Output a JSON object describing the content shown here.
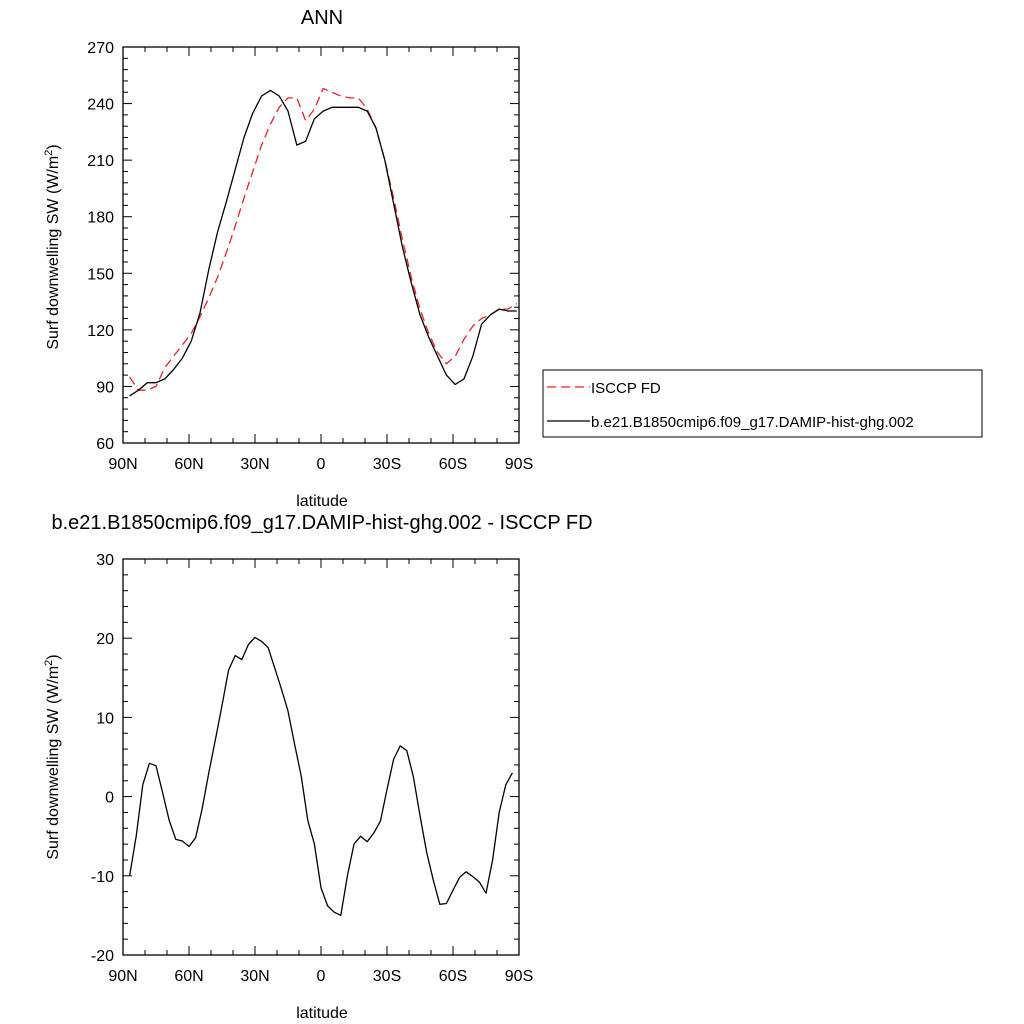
{
  "chart_data": [
    {
      "type": "line",
      "title": "ANN",
      "xlabel": "latitude",
      "ylabel": "Surf downwelling SW (W/m²)",
      "ylabel_main": "Surf downwelling SW (W/m",
      "ylabel_sup": "2",
      "ylabel_close": ")",
      "xlim": [
        90,
        -90
      ],
      "ylim": [
        60,
        270
      ],
      "xticks": [
        90,
        60,
        30,
        0,
        -30,
        -60,
        -90
      ],
      "xtick_labels": [
        "90N",
        "60N",
        "30N",
        "0",
        "30S",
        "60S",
        "90S"
      ],
      "yticks": [
        60,
        90,
        120,
        150,
        180,
        210,
        240,
        270
      ],
      "ytick_labels": [
        "60",
        "90",
        "120",
        "150",
        "180",
        "210",
        "240",
        "270"
      ],
      "legend": "right",
      "series": [
        {
          "name": "ISCCP FD",
          "color": "#e8212b",
          "dash": true,
          "x": [
            87,
            83,
            79,
            75,
            71,
            67,
            63,
            59,
            55,
            51,
            47,
            43,
            39,
            35,
            31,
            27,
            23,
            19,
            15,
            11,
            7,
            3,
            -1,
            -5,
            -9,
            -13,
            -17,
            -21,
            -25,
            -29,
            -33,
            -37,
            -41,
            -45,
            -49,
            -53,
            -57,
            -61,
            -65,
            -69,
            -73,
            -77,
            -81,
            -85,
            -89
          ],
          "y": [
            95,
            88,
            88,
            90,
            100,
            106,
            112,
            118,
            127,
            137,
            148,
            161,
            175,
            190,
            204,
            218,
            229,
            238,
            243,
            243,
            231,
            237,
            248,
            246,
            244,
            243,
            243,
            237,
            227,
            210,
            190,
            168,
            148,
            131,
            118,
            108,
            102,
            106,
            115,
            122,
            126,
            128,
            131,
            131,
            134
          ]
        },
        {
          "name": "b.e21.B1850cmip6.f09_g17.DAMIP-hist-ghg.002",
          "color": "#000000",
          "dash": false,
          "x": [
            87,
            83,
            79,
            75,
            71,
            67,
            63,
            59,
            55,
            51,
            47,
            43,
            39,
            35,
            31,
            27,
            23,
            19,
            15,
            11,
            7,
            3,
            -1,
            -5,
            -9,
            -13,
            -17,
            -21,
            -25,
            -29,
            -33,
            -37,
            -41,
            -45,
            -49,
            -53,
            -57,
            -61,
            -65,
            -69,
            -73,
            -77,
            -81,
            -85,
            -89
          ],
          "y": [
            85,
            88,
            92,
            92,
            94,
            99,
            105,
            114,
            129,
            152,
            172,
            188,
            205,
            222,
            235,
            244,
            247,
            244,
            236,
            218,
            220,
            232,
            236,
            238,
            238,
            238,
            238,
            236,
            227,
            210,
            187,
            164,
            145,
            128,
            116,
            106,
            96,
            91,
            94,
            106,
            123,
            128,
            131,
            130,
            130
          ]
        }
      ]
    },
    {
      "type": "line",
      "title": "b.e21.B1850cmip6.f09_g17.DAMIP-hist-ghg.002 - ISCCP FD",
      "xlabel": "latitude",
      "ylabel": "Surf downwelling SW (W/m²)",
      "ylabel_main": "Surf downwelling SW (W/m",
      "ylabel_sup": "2",
      "ylabel_close": ")",
      "xlim": [
        90,
        -90
      ],
      "ylim": [
        -20,
        30
      ],
      "xticks": [
        90,
        60,
        30,
        0,
        -30,
        -60,
        -90
      ],
      "xtick_labels": [
        "90N",
        "60N",
        "30N",
        "0",
        "30S",
        "60S",
        "90S"
      ],
      "yticks": [
        -20,
        -10,
        0,
        10,
        20,
        30
      ],
      "ytick_labels": [
        "-20",
        "-10",
        "0",
        "10",
        "20",
        "30"
      ],
      "series": [
        {
          "name": "",
          "color": "#000000",
          "dash": false,
          "x": [
            87,
            84,
            81,
            78,
            75,
            72,
            69,
            66,
            63,
            60,
            57,
            54,
            51,
            48,
            45,
            42,
            39,
            36,
            33,
            30,
            27,
            24,
            21,
            18,
            15,
            12,
            9,
            6,
            3,
            0,
            -3,
            -6,
            -9,
            -12,
            -15,
            -18,
            -21,
            -24,
            -27,
            -30,
            -33,
            -36,
            -39,
            -42,
            -45,
            -48,
            -51,
            -54,
            -57,
            -60,
            -63,
            -66,
            -69,
            -72,
            -75,
            -78,
            -81,
            -84,
            -87
          ],
          "y": [
            -10,
            -5,
            1.5,
            4.2,
            3.9,
            0.5,
            -3,
            -5.4,
            -5.6,
            -6.3,
            -5.2,
            -1.5,
            3,
            7.2,
            11.5,
            16,
            17.8,
            17.3,
            19.2,
            20.1,
            19.6,
            18.8,
            16.2,
            13.6,
            10.8,
            6.6,
            2.6,
            -3,
            -6,
            -11.5,
            -13.8,
            -14.6,
            -15,
            -10,
            -6,
            -5,
            -5.7,
            -4.6,
            -3.1,
            0.9,
            4.7,
            6.4,
            5.8,
            2.5,
            -2.4,
            -7,
            -10.5,
            -13.6,
            -13.5,
            -11.8,
            -10.2,
            -9.5,
            -10.1,
            -10.8,
            -12.2,
            -8,
            -2,
            1.5,
            3
          ]
        }
      ]
    }
  ],
  "legend": {
    "items": [
      {
        "label": "ISCCP FD"
      },
      {
        "label": "b.e21.B1850cmip6.f09_g17.DAMIP-hist-ghg.002"
      }
    ]
  }
}
